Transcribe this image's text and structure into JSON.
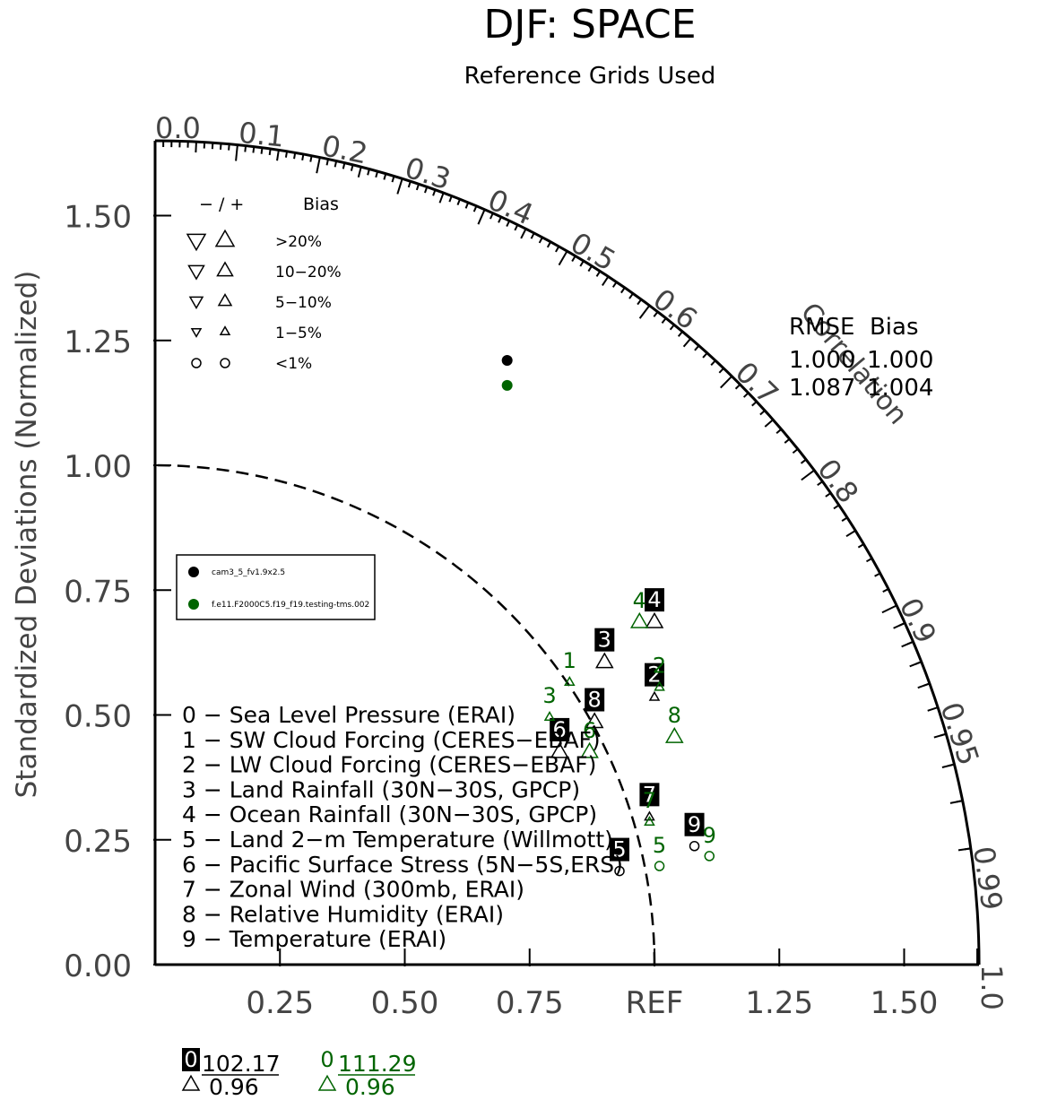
{
  "chart_data": {
    "type": "scatter",
    "title": "DJF: SPACE",
    "subtitle": "Reference Grids Used",
    "ylabel": "Standardized Deviations (Normalized)",
    "correlation_label": "Correlation",
    "ref_label": "REF",
    "max_radius": 1.65,
    "ylim": [
      0,
      1.65
    ],
    "y_ticks": [
      "0.00",
      "0.25",
      "0.50",
      "0.75",
      "1.00",
      "1.25",
      "1.50"
    ],
    "y_tick_values": [
      0,
      0.25,
      0.5,
      0.75,
      1.0,
      1.25,
      1.5
    ],
    "x_ticks": [
      "0.25",
      "0.50",
      "0.75",
      "REF",
      "1.25",
      "1.50"
    ],
    "x_tick_values": [
      0.25,
      0.5,
      0.75,
      1.0,
      1.25,
      1.5
    ],
    "corr_ticks": [
      "0.0",
      "0.1",
      "0.2",
      "0.3",
      "0.4",
      "0.5",
      "0.6",
      "0.7",
      "0.8",
      "0.9",
      "0.95",
      "0.99",
      "1.0"
    ],
    "corr_tick_values": [
      0.0,
      0.1,
      0.2,
      0.3,
      0.4,
      0.5,
      0.6,
      0.7,
      0.8,
      0.9,
      0.95,
      0.99,
      1.0
    ],
    "bias_legend": {
      "header_sign": "− / +",
      "header_bias": "Bias",
      "rows": [
        ">20%",
        "10−20%",
        "5−10%",
        "1−5%",
        "<1%"
      ]
    },
    "rmse_bias_table": {
      "header": "RMSE  Bias",
      "rows": [
        {
          "rmse": "1.000",
          "bias": "1.000",
          "color": "#000000"
        },
        {
          "rmse": "1.087",
          "bias": "1.004",
          "color": "#006400"
        }
      ],
      "marker_points": [
        {
          "x": 0.705,
          "y": 1.21,
          "color": "#000000"
        },
        {
          "x": 0.705,
          "y": 1.16,
          "color": "#006400"
        }
      ]
    },
    "variables": [
      "0 − Sea Level Pressure (ERAI)",
      "1 − SW Cloud Forcing (CERES−EBAF)",
      "2 − LW Cloud Forcing (CERES−EBAF)",
      "3 − Land Rainfall (30N−30S, GPCP)",
      "4 − Ocean Rainfall (30N−30S, GPCP)",
      "5 − Land 2−m Temperature (Willmott)",
      "6 − Pacific Surface Stress (5N−5S,ERS)",
      "7 − Zonal Wind (300mb, ERAI)",
      "8 − Relative Humidity (ERAI)",
      "9 − Temperature (ERAI)"
    ],
    "series": [
      {
        "name": "cam3_5_fv1.9x2.5",
        "color": "#000000",
        "points": [
          {
            "label": "2",
            "x": 1.0,
            "y": 0.55,
            "marker": "tri-up-s"
          },
          {
            "label": "3",
            "x": 0.9,
            "y": 0.62,
            "marker": "tri-up-m"
          },
          {
            "label": "4",
            "x": 1.0,
            "y": 0.7,
            "marker": "tri-up-m"
          },
          {
            "label": "5",
            "x": 0.93,
            "y": 0.2,
            "marker": "circle"
          },
          {
            "label": "6",
            "x": 0.81,
            "y": 0.44,
            "marker": "tri-up-m"
          },
          {
            "label": "7",
            "x": 0.99,
            "y": 0.31,
            "marker": "tri-up-s"
          },
          {
            "label": "8",
            "x": 0.88,
            "y": 0.5,
            "marker": "tri-up-m"
          },
          {
            "label": "9",
            "x": 1.08,
            "y": 0.25,
            "marker": "circle"
          }
        ]
      },
      {
        "name": "f.e11.F2000C5.f19_f19.testing-tms.002",
        "color": "#006400",
        "points": [
          {
            "label": "1",
            "x": 0.83,
            "y": 0.58,
            "marker": "tri-up-s"
          },
          {
            "label": "2",
            "x": 1.01,
            "y": 0.57,
            "marker": "tri-up-s"
          },
          {
            "label": "3",
            "x": 0.79,
            "y": 0.51,
            "marker": "tri-up-s"
          },
          {
            "label": "4",
            "x": 0.97,
            "y": 0.7,
            "marker": "tri-up-m"
          },
          {
            "label": "5",
            "x": 1.01,
            "y": 0.21,
            "marker": "circle"
          },
          {
            "label": "6",
            "x": 0.87,
            "y": 0.44,
            "marker": "tri-up-m"
          },
          {
            "label": "7",
            "x": 0.99,
            "y": 0.3,
            "marker": "tri-up-s"
          },
          {
            "label": "8",
            "x": 1.04,
            "y": 0.47,
            "marker": "tri-up-m"
          },
          {
            "label": "9",
            "x": 1.11,
            "y": 0.23,
            "marker": "circle"
          }
        ]
      }
    ],
    "offscale": [
      {
        "label": "0",
        "value": "102.17",
        "bias": "0.96",
        "color": "#000000"
      },
      {
        "label": "0",
        "value": "111.29",
        "bias": "0.96",
        "color": "#006400"
      }
    ]
  }
}
